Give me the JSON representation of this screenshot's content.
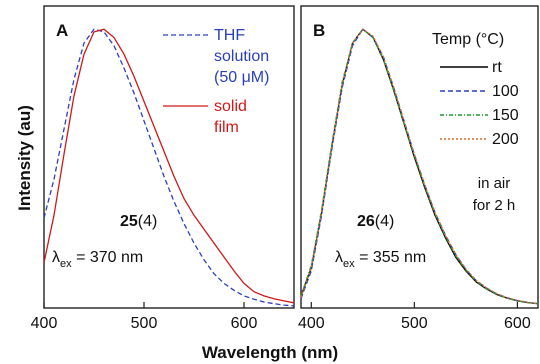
{
  "figure": {
    "ylabel": "Intensity (au)",
    "xlabel": "Wavelength (nm)"
  },
  "chart_data": [
    {
      "type": "line",
      "panel_label": "A",
      "xlim": [
        400,
        650
      ],
      "xticks": [
        400,
        500,
        600
      ],
      "compound": "25",
      "compound_suffix": "(4)",
      "excitation": {
        "symbol": "λ",
        "sub": "ex",
        "value": " = 370 nm"
      },
      "legend": [
        {
          "lines": [
            "THF",
            "solution",
            "(50 μM)"
          ],
          "color": "#2a3fbf",
          "dash": "5,3"
        },
        {
          "lines": [
            "solid",
            "film"
          ],
          "color": "#d01818",
          "dash": ""
        }
      ],
      "series": [
        {
          "name": "THF solution (50 μM)",
          "color": "#2a3fbf",
          "dash": "5,3",
          "x": [
            400,
            410,
            420,
            430,
            440,
            450,
            460,
            470,
            480,
            490,
            500,
            510,
            520,
            530,
            540,
            550,
            560,
            570,
            580,
            590,
            600,
            610,
            620,
            630,
            640,
            650
          ],
          "y": [
            0.32,
            0.46,
            0.64,
            0.82,
            0.95,
            1.0,
            0.99,
            0.94,
            0.86,
            0.77,
            0.67,
            0.57,
            0.47,
            0.38,
            0.3,
            0.23,
            0.17,
            0.12,
            0.085,
            0.06,
            0.04,
            0.028,
            0.018,
            0.012,
            0.007,
            0.004
          ]
        },
        {
          "name": "solid film",
          "color": "#d01818",
          "dash": "",
          "x": [
            400,
            410,
            420,
            430,
            440,
            450,
            460,
            470,
            480,
            490,
            500,
            510,
            520,
            530,
            540,
            550,
            560,
            570,
            580,
            590,
            600,
            610,
            620,
            630,
            640,
            650
          ],
          "y": [
            0.16,
            0.33,
            0.55,
            0.76,
            0.91,
            0.99,
            1.0,
            0.97,
            0.91,
            0.83,
            0.74,
            0.65,
            0.56,
            0.47,
            0.39,
            0.33,
            0.28,
            0.23,
            0.18,
            0.13,
            0.085,
            0.055,
            0.04,
            0.03,
            0.022,
            0.015
          ]
        }
      ]
    },
    {
      "type": "line",
      "panel_label": "B",
      "xlim": [
        390,
        620
      ],
      "xticks": [
        400,
        500,
        600
      ],
      "compound": "26",
      "compound_suffix": "(4)",
      "excitation": {
        "symbol": "λ",
        "sub": "ex",
        "value": " = 355 nm"
      },
      "legend_title": "Temp (°C)",
      "legend": [
        {
          "label": "rt",
          "color": "#000000",
          "dash": ""
        },
        {
          "label": "100",
          "color": "#2a3fbf",
          "dash": "5,3"
        },
        {
          "label": "150",
          "color": "#1e9a2a",
          "dash": "4,2,1,2"
        },
        {
          "label": "200",
          "color": "#e06a2a",
          "dash": "2,2"
        }
      ],
      "note": [
        "in air",
        "for 2 h"
      ],
      "series": [
        {
          "name": "rt",
          "color": "#000000",
          "dash": "",
          "x": [
            390,
            400,
            410,
            420,
            430,
            440,
            450,
            460,
            470,
            480,
            490,
            500,
            510,
            520,
            530,
            540,
            550,
            560,
            570,
            580,
            590,
            600,
            610,
            620
          ],
          "y": [
            0.04,
            0.14,
            0.34,
            0.58,
            0.8,
            0.95,
            1.0,
            0.97,
            0.89,
            0.78,
            0.66,
            0.54,
            0.43,
            0.33,
            0.25,
            0.18,
            0.13,
            0.09,
            0.065,
            0.045,
            0.032,
            0.022,
            0.016,
            0.012
          ]
        },
        {
          "name": "100",
          "color": "#2a3fbf",
          "dash": "5,3",
          "x": [
            390,
            400,
            410,
            420,
            430,
            440,
            450,
            460,
            470,
            480,
            490,
            500,
            510,
            520,
            530,
            540,
            550,
            560,
            570,
            580,
            590,
            600,
            610,
            620
          ],
          "y": [
            0.03,
            0.13,
            0.33,
            0.57,
            0.79,
            0.94,
            1.0,
            0.97,
            0.9,
            0.79,
            0.67,
            0.55,
            0.44,
            0.34,
            0.26,
            0.19,
            0.135,
            0.095,
            0.068,
            0.047,
            0.033,
            0.023,
            0.017,
            0.012
          ]
        },
        {
          "name": "150",
          "color": "#1e9a2a",
          "dash": "4,2,1,2",
          "x": [
            390,
            400,
            410,
            420,
            430,
            440,
            450,
            460,
            470,
            480,
            490,
            500,
            510,
            520,
            530,
            540,
            550,
            560,
            570,
            580,
            590,
            600,
            610,
            620
          ],
          "y": [
            0.04,
            0.15,
            0.35,
            0.59,
            0.81,
            0.95,
            1.0,
            0.97,
            0.89,
            0.78,
            0.66,
            0.545,
            0.435,
            0.335,
            0.255,
            0.185,
            0.133,
            0.092,
            0.066,
            0.046,
            0.032,
            0.022,
            0.016,
            0.012
          ]
        },
        {
          "name": "200",
          "color": "#e06a2a",
          "dash": "2,2",
          "x": [
            390,
            400,
            410,
            420,
            430,
            440,
            450,
            460,
            470,
            480,
            490,
            500,
            510,
            520,
            530,
            540,
            550,
            560,
            570,
            580,
            590,
            600,
            610,
            620
          ],
          "y": [
            0.035,
            0.14,
            0.34,
            0.58,
            0.8,
            0.95,
            1.0,
            0.975,
            0.9,
            0.79,
            0.67,
            0.55,
            0.44,
            0.34,
            0.26,
            0.19,
            0.137,
            0.096,
            0.069,
            0.048,
            0.034,
            0.024,
            0.017,
            0.012
          ]
        }
      ]
    }
  ]
}
